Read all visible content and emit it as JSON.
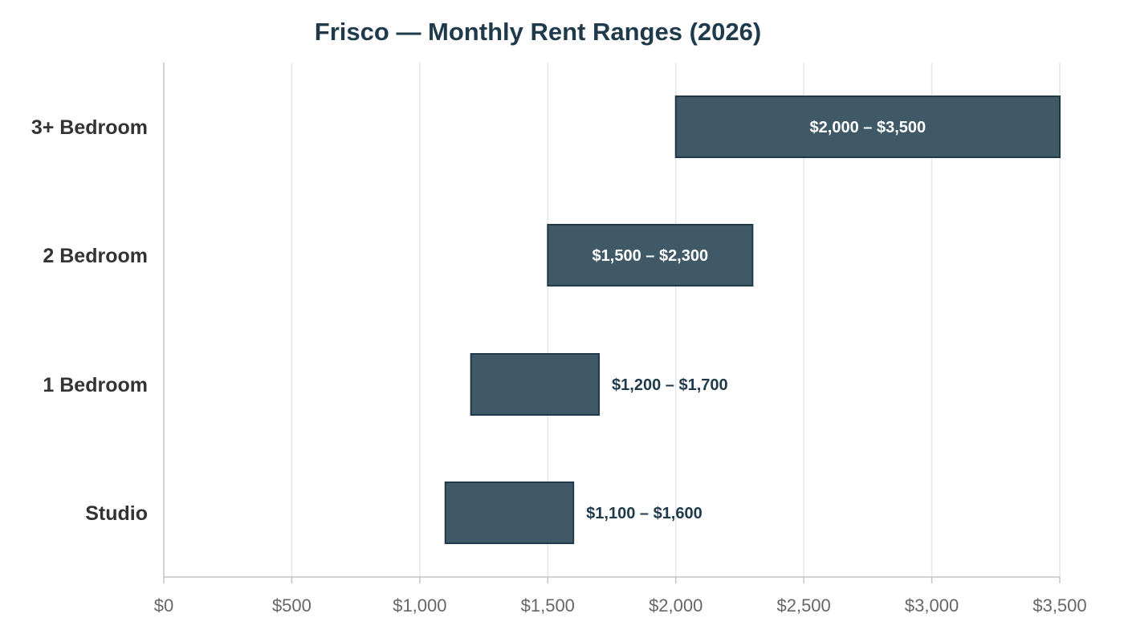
{
  "chart_data": {
    "type": "bar",
    "orientation": "horizontal",
    "title": "Frisco — Monthly Rent Ranges (2026)",
    "xlabel": "",
    "ylabel": "",
    "xlim": [
      0,
      3500
    ],
    "x_ticks": [
      0,
      500,
      1000,
      1500,
      2000,
      2500,
      3000,
      3500
    ],
    "x_tick_labels": [
      "$0",
      "$500",
      "$1,000",
      "$1,500",
      "$2,000",
      "$2,500",
      "$3,000",
      "$3,500"
    ],
    "grid": "vertical",
    "legend": "none",
    "categories": [
      "3+ Bedroom",
      "2 Bedroom",
      "1 Bedroom",
      "Studio"
    ],
    "ranges": [
      {
        "category": "3+ Bedroom",
        "low": 2000,
        "high": 3500,
        "label": "$2,000 – $3,500"
      },
      {
        "category": "2 Bedroom",
        "low": 1500,
        "high": 2300,
        "label": "$1,500 – $2,300"
      },
      {
        "category": "1 Bedroom",
        "low": 1200,
        "high": 1700,
        "label": "$1,200 – $1,700"
      },
      {
        "category": "Studio",
        "low": 1100,
        "high": 1600,
        "label": "$1,100 – $1,600"
      }
    ],
    "colors": {
      "bar_fill": "#3f5a66",
      "bar_stroke": "#1f3a4a",
      "label_inside": "#ffffff",
      "label_outside": "#1f3a4a"
    }
  }
}
